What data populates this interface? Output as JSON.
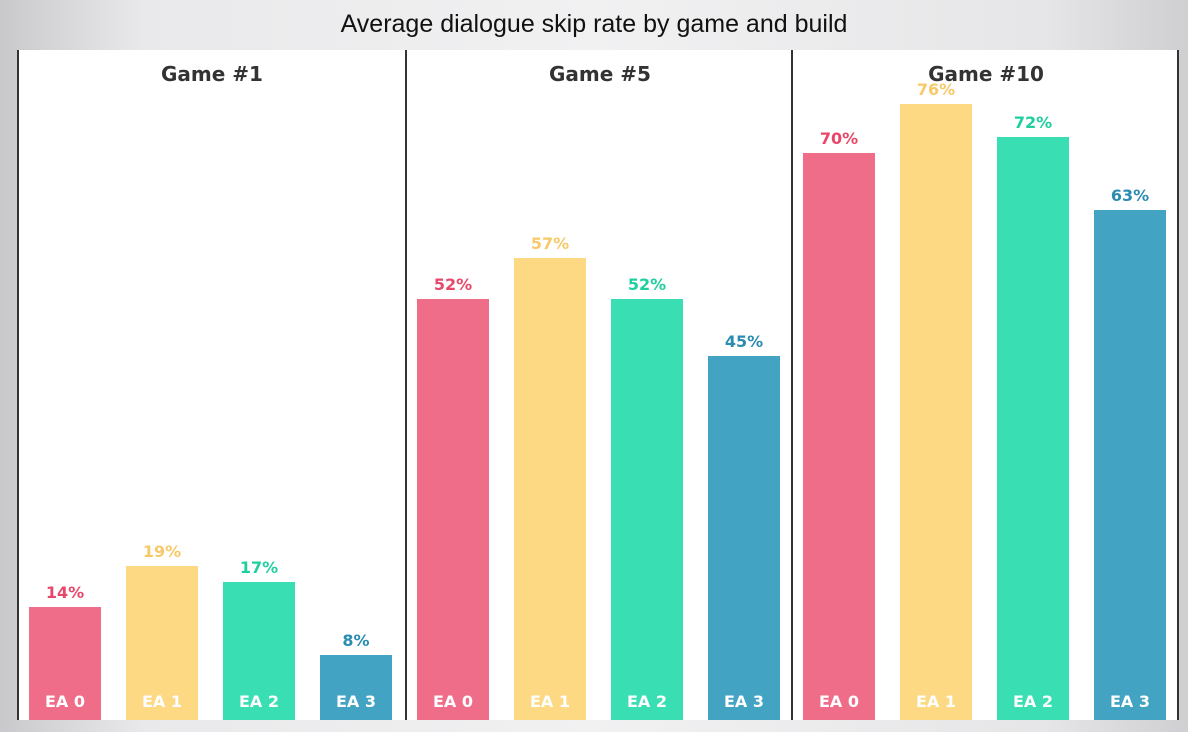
{
  "chart_data": {
    "type": "bar",
    "title": "Average dialogue skip rate by game and build",
    "categories": [
      "EA 0",
      "EA 1",
      "EA 2",
      "EA 3"
    ],
    "colors": [
      "#f06d8a",
      "#fdd983",
      "#39dfb2",
      "#42a3c3"
    ],
    "label_colors": [
      "#e8476a",
      "#f8c969",
      "#20cf9f",
      "#2a8cb0"
    ],
    "ylim": [
      0,
      100
    ],
    "panels": [
      {
        "title": "Game #1",
        "values": [
          14,
          19,
          17,
          8
        ],
        "labels": [
          "14%",
          "19%",
          "17%",
          "8%"
        ]
      },
      {
        "title": "Game #5",
        "values": [
          52,
          57,
          52,
          45
        ],
        "labels": [
          "52%",
          "57%",
          "52%",
          "45%"
        ]
      },
      {
        "title": "Game #10",
        "values": [
          70,
          76,
          72,
          63
        ],
        "labels": [
          "70%",
          "76%",
          "72%",
          "63%"
        ]
      }
    ]
  }
}
